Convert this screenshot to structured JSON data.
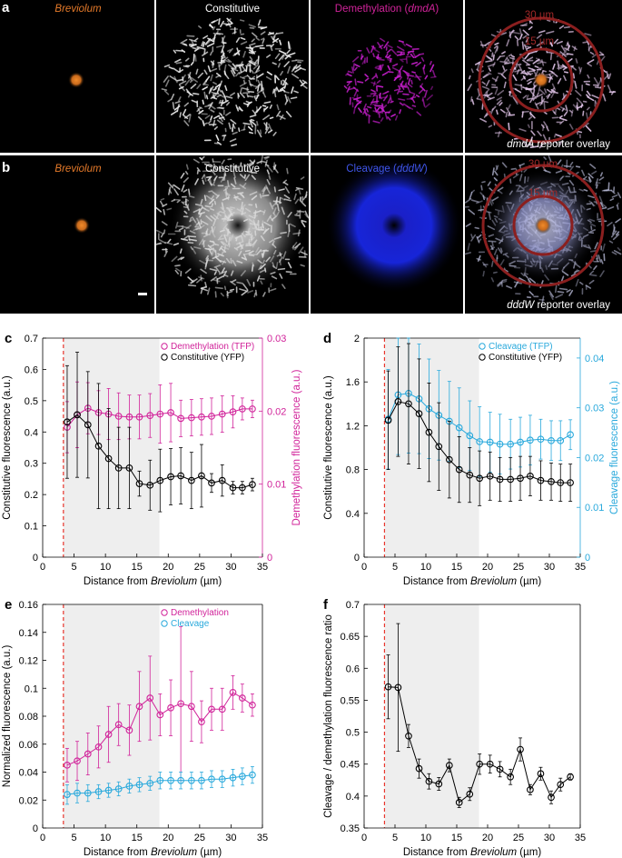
{
  "panel_a": {
    "letter": "a",
    "tile1": {
      "label": "Breviolum"
    },
    "tile2": {
      "label": "Constitutive"
    },
    "tile3": {
      "prefix": "Demethylation (",
      "gene": "dmdA",
      "suffix": ")"
    },
    "tile4": {
      "ring_outer": "30 µm",
      "ring_inner": "15 µm",
      "gene": "dmdA",
      "caption": " reporter overlay"
    }
  },
  "panel_b": {
    "letter": "b",
    "tile1": {
      "label": "Breviolum"
    },
    "tile2": {
      "label": "Constitutive"
    },
    "tile3": {
      "prefix": "Cleavage (",
      "gene": "dddW",
      "suffix": ")"
    },
    "tile4": {
      "ring_outer": "30 µm",
      "ring_inner": "15 µm",
      "gene": "dddW",
      "caption": " reporter overlay"
    }
  },
  "colors": {
    "orange": "#e57a2a",
    "magenta": "#d1239a",
    "cyan": "#29a9dc",
    "black": "#000000",
    "red_ring": "#8b1f1f",
    "shade": "#eeeeee",
    "dash": "#e8352c"
  },
  "xlabel_prefix": "Distance from ",
  "xlabel_italic": "Breviolum",
  "xlabel_suffix": " (µm)",
  "chart_data": [
    {
      "id": "c",
      "letter": "c",
      "type": "line",
      "x": [
        3.9,
        5.5,
        7.2,
        8.9,
        10.5,
        12.1,
        13.8,
        15.4,
        17.1,
        18.7,
        20.4,
        22.0,
        23.7,
        25.3,
        26.9,
        28.6,
        30.3,
        31.8,
        33.4
      ],
      "xlim": [
        0,
        35
      ],
      "xticks": [
        0,
        5,
        10,
        15,
        20,
        25,
        30,
        35
      ],
      "shade_range": [
        3.3,
        18.6
      ],
      "dashed_line_x": 3.3,
      "ylabel": "Constitutive fluorescence (a.u.)",
      "ylim": [
        0,
        0.7
      ],
      "yticks": [
        "0",
        "0.1",
        "0.2",
        "0.3",
        "0.4",
        "0.5",
        "0.6",
        "0.7"
      ],
      "ylabel2": "Demethylation fluorescence (a.u.)",
      "ylim2": [
        0,
        0.03
      ],
      "yticks2": [
        "0",
        "0.01",
        "0.02",
        "0.03"
      ],
      "series": [
        {
          "name": "Demethylation (TFP)",
          "axis": "right",
          "color": "#d1239a",
          "values": [
            0.0178,
            0.0195,
            0.0204,
            0.0198,
            0.0196,
            0.0193,
            0.0192,
            0.0192,
            0.0194,
            0.0196,
            0.0198,
            0.019,
            0.0191,
            0.0192,
            0.0193,
            0.0196,
            0.0199,
            0.0203,
            0.0203
          ],
          "errors": [
            0.0035,
            0.0045,
            0.0035,
            0.003,
            0.0035,
            0.0032,
            0.003,
            0.003,
            0.003,
            0.004,
            0.004,
            0.0025,
            0.0025,
            0.0025,
            0.0025,
            0.0025,
            0.0022,
            0.0015,
            0.0012
          ]
        },
        {
          "name": "Constitutive (YFP)",
          "axis": "left",
          "color": "#000000",
          "values": [
            0.432,
            0.455,
            0.423,
            0.355,
            0.315,
            0.285,
            0.285,
            0.235,
            0.23,
            0.245,
            0.257,
            0.26,
            0.245,
            0.26,
            0.237,
            0.245,
            0.222,
            0.222,
            0.232
          ],
          "errors": [
            0.18,
            0.2,
            0.17,
            0.2,
            0.16,
            0.13,
            0.13,
            0.04,
            0.08,
            0.1,
            0.09,
            0.09,
            0.09,
            0.1,
            0.03,
            0.05,
            0.02,
            0.02,
            0.02
          ]
        }
      ]
    },
    {
      "id": "d",
      "letter": "d",
      "type": "line",
      "x": [
        3.9,
        5.5,
        7.2,
        8.9,
        10.5,
        12.1,
        13.8,
        15.4,
        17.1,
        18.7,
        20.4,
        22.0,
        23.7,
        25.3,
        26.9,
        28.6,
        30.3,
        31.8,
        33.4
      ],
      "xlim": [
        0,
        35
      ],
      "xticks": [
        0,
        5,
        10,
        15,
        20,
        25,
        30,
        35
      ],
      "shade_range": [
        3.3,
        18.6
      ],
      "dashed_line_x": 3.3,
      "ylabel": "Constitutive fluorescence (a.u.)",
      "ylim": [
        0,
        2
      ],
      "yticks": [
        "0",
        "0.4",
        "0.8",
        "1.2",
        "1.6",
        "2"
      ],
      "ylabel2": "Cleavage fluorescence (a.u.)",
      "ylim2": [
        0,
        0.044
      ],
      "yticks2": [
        "0",
        "0.01",
        "0.02",
        "0.03",
        "0.04"
      ],
      "series": [
        {
          "name": "Cleavage (TFP)",
          "axis": "right",
          "color": "#29a9dc",
          "values": [
            0.0277,
            0.0326,
            0.0329,
            0.0318,
            0.0298,
            0.0285,
            0.0273,
            0.026,
            0.0244,
            0.0232,
            0.0231,
            0.0227,
            0.0227,
            0.0231,
            0.0235,
            0.0237,
            0.0234,
            0.0234,
            0.0246
          ],
          "errors": [
            0.01,
            0.012,
            0.012,
            0.011,
            0.01,
            0.009,
            0.008,
            0.008,
            0.007,
            0.007,
            0.006,
            0.006,
            0.005,
            0.005,
            0.005,
            0.004,
            0.004,
            0.004,
            0.003
          ]
        },
        {
          "name": "Constitutive (YFP)",
          "axis": "left",
          "color": "#000000",
          "values": [
            1.25,
            1.42,
            1.4,
            1.31,
            1.14,
            1.01,
            0.89,
            0.8,
            0.75,
            0.72,
            0.74,
            0.71,
            0.71,
            0.72,
            0.74,
            0.7,
            0.69,
            0.68,
            0.68
          ],
          "errors": [
            0.45,
            0.5,
            0.55,
            0.5,
            0.45,
            0.4,
            0.35,
            0.3,
            0.25,
            0.25,
            0.22,
            0.2,
            0.2,
            0.2,
            0.18,
            0.18,
            0.17,
            0.17,
            0.17
          ]
        }
      ]
    },
    {
      "id": "e",
      "letter": "e",
      "type": "line",
      "x": [
        3.9,
        5.5,
        7.2,
        8.9,
        10.5,
        12.1,
        13.8,
        15.4,
        17.1,
        18.7,
        20.4,
        22.0,
        23.7,
        25.3,
        26.9,
        28.6,
        30.3,
        31.8,
        33.4
      ],
      "xlim": [
        0,
        35
      ],
      "xticks": [
        0,
        5,
        10,
        15,
        20,
        25,
        30,
        35
      ],
      "shade_range": [
        3.3,
        18.6
      ],
      "dashed_line_x": 3.3,
      "ylabel": "Normalized fluorescence (a.u.)",
      "ylim": [
        0,
        0.16
      ],
      "yticks": [
        "0",
        "0.02",
        "0.04",
        "0.06",
        "0.08",
        "0.1",
        "0.12",
        "0.14",
        "0.16"
      ],
      "series": [
        {
          "name": "Demethylation",
          "axis": "left",
          "color": "#d1239a",
          "values": [
            0.045,
            0.048,
            0.053,
            0.058,
            0.067,
            0.074,
            0.07,
            0.087,
            0.093,
            0.081,
            0.086,
            0.089,
            0.087,
            0.076,
            0.085,
            0.085,
            0.097,
            0.093,
            0.088
          ],
          "errors": [
            0.012,
            0.014,
            0.015,
            0.015,
            0.02,
            0.015,
            0.018,
            0.025,
            0.03,
            0.015,
            0.02,
            0.055,
            0.025,
            0.015,
            0.015,
            0.015,
            0.012,
            0.01,
            0.008
          ]
        },
        {
          "name": "Cleavage",
          "axis": "left",
          "color": "#29a9dc",
          "values": [
            0.024,
            0.025,
            0.025,
            0.026,
            0.027,
            0.028,
            0.03,
            0.031,
            0.032,
            0.034,
            0.034,
            0.034,
            0.034,
            0.034,
            0.035,
            0.035,
            0.036,
            0.037,
            0.038
          ],
          "errors": [
            0.007,
            0.007,
            0.006,
            0.005,
            0.005,
            0.005,
            0.005,
            0.005,
            0.005,
            0.006,
            0.006,
            0.006,
            0.006,
            0.006,
            0.006,
            0.006,
            0.006,
            0.006,
            0.006
          ]
        }
      ]
    },
    {
      "id": "f",
      "letter": "f",
      "type": "line",
      "x": [
        3.9,
        5.5,
        7.2,
        8.9,
        10.5,
        12.1,
        13.8,
        15.4,
        17.1,
        18.7,
        20.4,
        22.0,
        23.7,
        25.3,
        26.9,
        28.6,
        30.3,
        31.8,
        33.4
      ],
      "xlim": [
        0,
        35
      ],
      "xticks": [
        0,
        5,
        10,
        15,
        20,
        25,
        30,
        35
      ],
      "shade_range": [
        3.3,
        18.6
      ],
      "dashed_line_x": 3.3,
      "ylabel": "Cleavage / demethylation fluorescence ratio",
      "ylim": [
        0.35,
        0.7
      ],
      "yticks": [
        "0.35",
        "0.4",
        "0.45",
        "0.5",
        "0.55",
        "0.6",
        "0.65",
        "0.7"
      ],
      "series": [
        {
          "name": "Ratio",
          "axis": "left",
          "color": "#000000",
          "values": [
            0.571,
            0.57,
            0.494,
            0.443,
            0.423,
            0.419,
            0.448,
            0.39,
            0.403,
            0.45,
            0.45,
            0.442,
            0.43,
            0.473,
            0.41,
            0.435,
            0.398,
            0.418,
            0.43
          ],
          "errors": [
            0.05,
            0.1,
            0.018,
            0.015,
            0.012,
            0.01,
            0.01,
            0.008,
            0.01,
            0.016,
            0.014,
            0.012,
            0.012,
            0.018,
            0.008,
            0.01,
            0.01,
            0.01,
            0.005
          ]
        }
      ]
    }
  ]
}
